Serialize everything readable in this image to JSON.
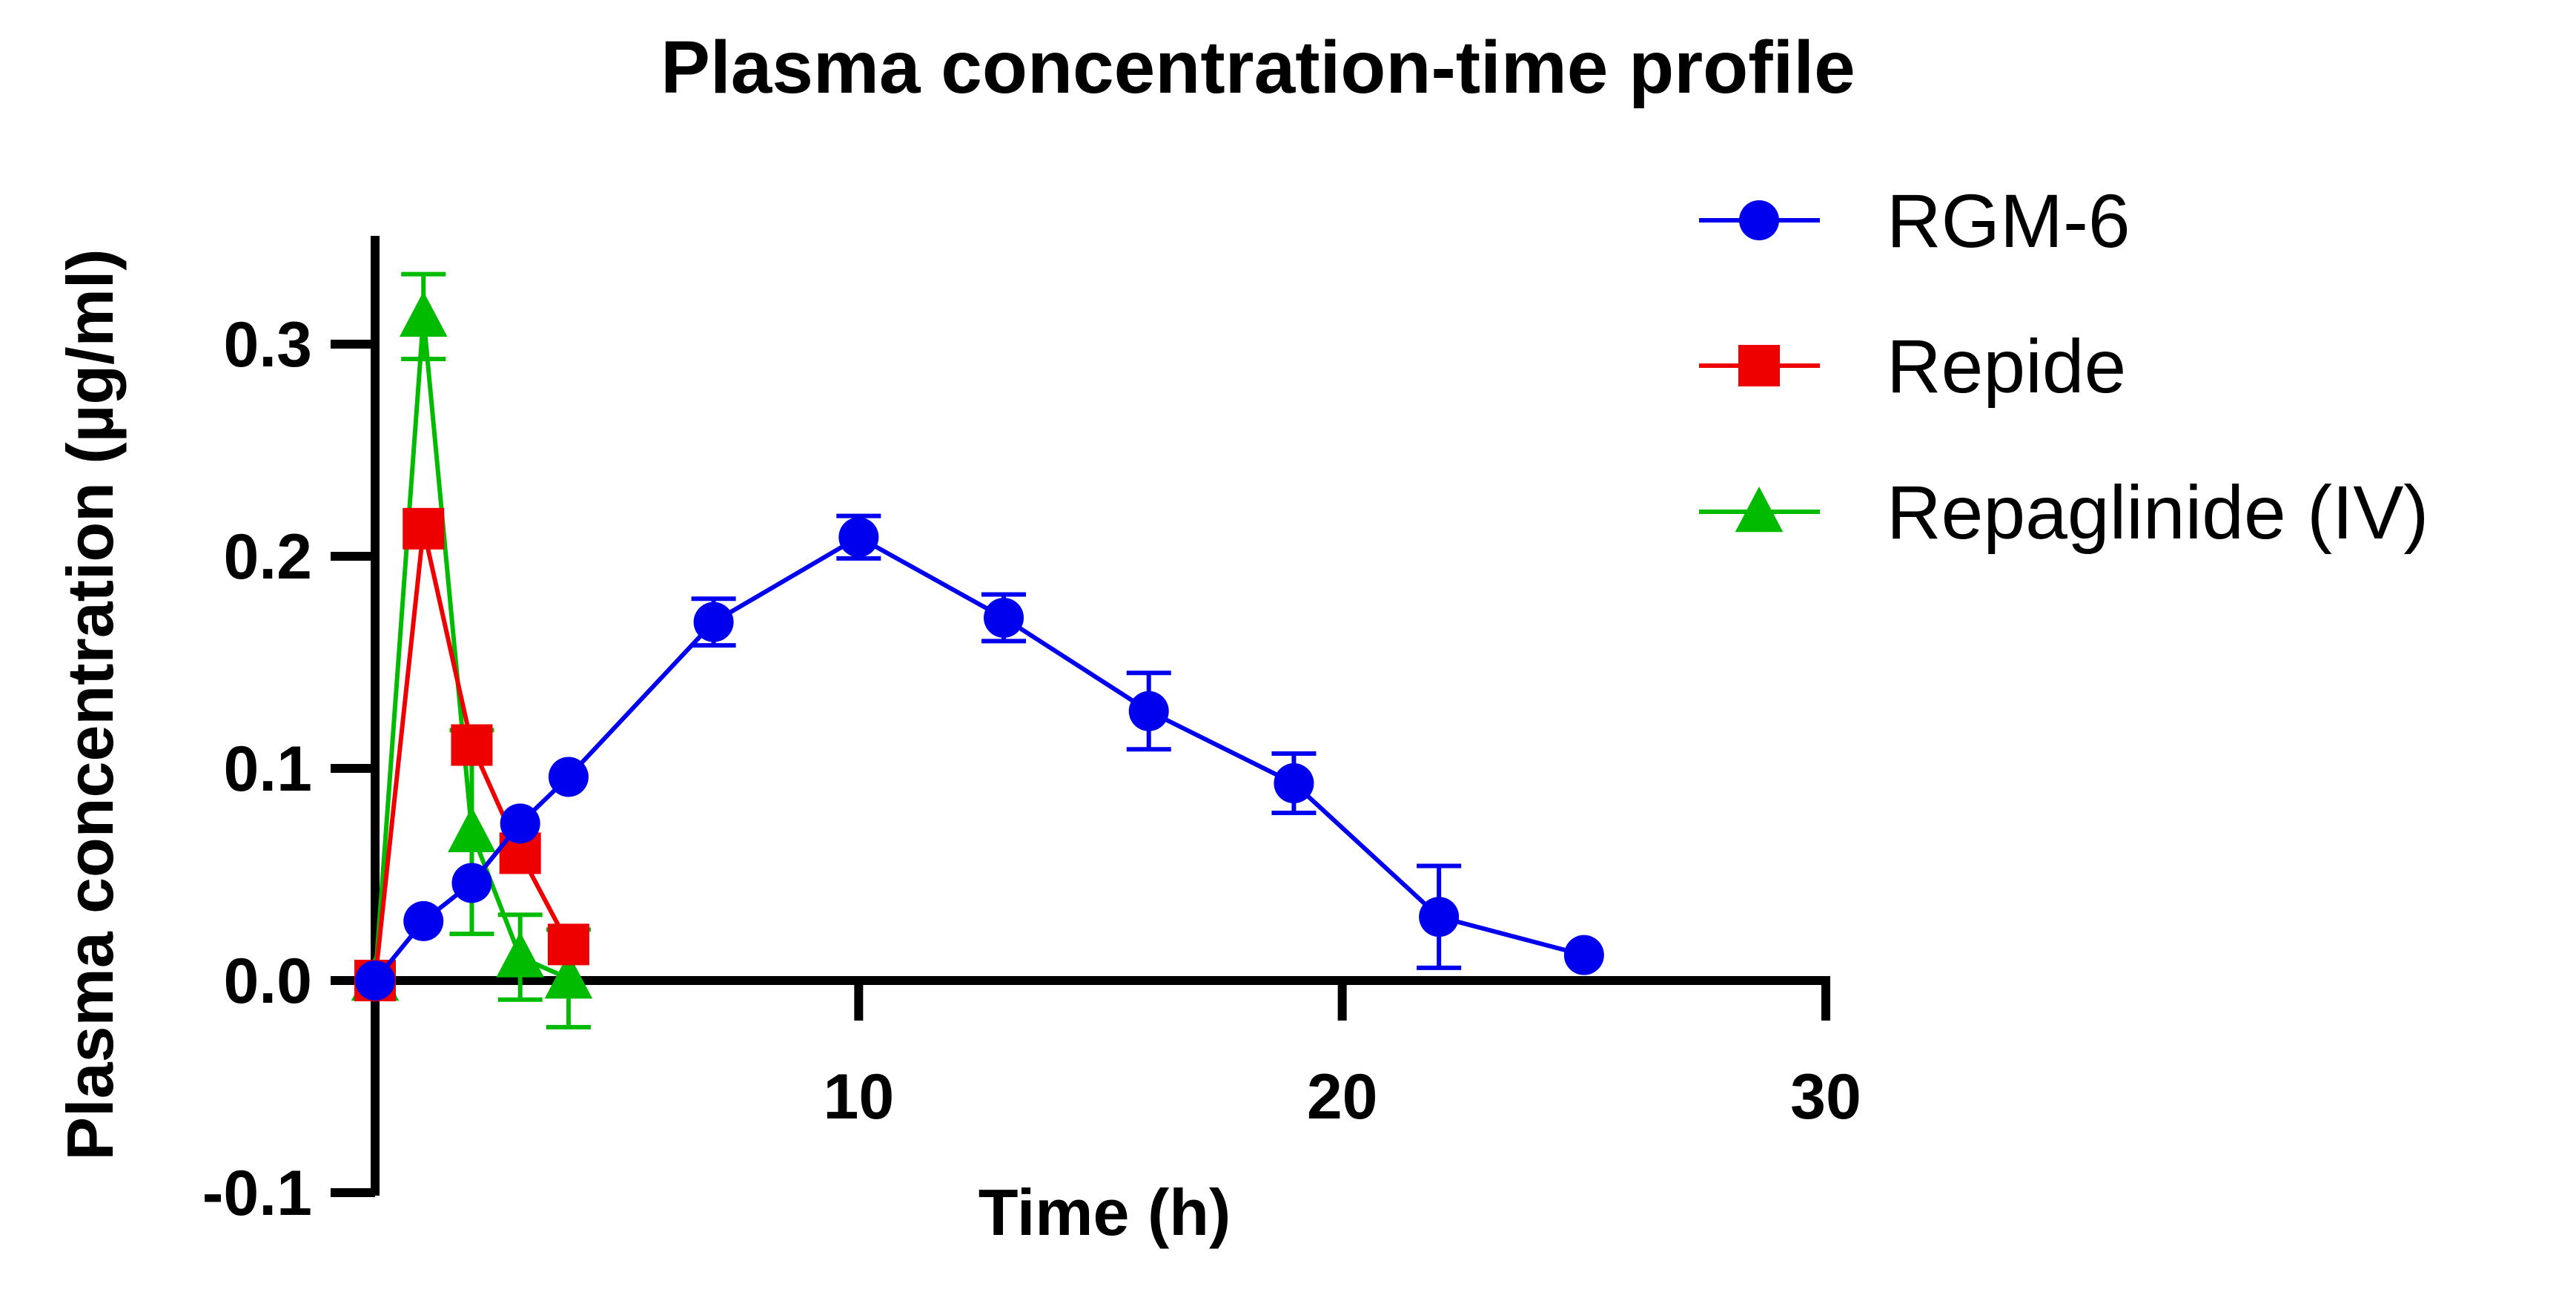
{
  "chart_data": {
    "type": "line",
    "title": "Plasma concentration-time profile",
    "xlabel": "Time (h)",
    "ylabel": "Plasma concentration (µg/ml)",
    "xlim": [
      0,
      30
    ],
    "ylim": [
      -0.1,
      0.35
    ],
    "x_ticks": [
      10,
      20,
      30
    ],
    "y_ticks": [
      -0.1,
      0.0,
      0.1,
      0.2,
      0.3
    ],
    "x_tick_labels": [
      "10",
      "20",
      "30"
    ],
    "y_tick_labels": [
      "-0.1",
      "0.0",
      "0.1",
      "0.2",
      "0.3"
    ],
    "grid": false,
    "legend_position": "top-right",
    "series": [
      {
        "name": "RGM-6",
        "marker": "circle",
        "color": "#0000ee",
        "x": [
          0,
          1,
          2,
          3,
          4,
          7,
          10,
          13,
          16,
          19,
          22,
          25
        ],
        "y": [
          0.0,
          0.028,
          0.046,
          0.074,
          0.096,
          0.169,
          0.209,
          0.171,
          0.127,
          0.093,
          0.03,
          0.012
        ],
        "err": [
          0,
          0,
          0,
          0,
          0,
          0.011,
          0.01,
          0.011,
          0.018,
          0.014,
          0.024,
          0
        ]
      },
      {
        "name": "Repide",
        "marker": "square",
        "color": "#ee0000",
        "x": [
          0,
          1,
          2,
          3,
          4
        ],
        "y": [
          0.0,
          0.213,
          0.111,
          0.06,
          0.017
        ],
        "err": [
          0,
          0,
          0,
          0,
          0
        ]
      },
      {
        "name": "Repaglinide (IV)",
        "marker": "triangle",
        "color": "#00bb00",
        "x": [
          0,
          1,
          2,
          3,
          4
        ],
        "y": [
          0.0,
          0.313,
          0.07,
          0.011,
          0.001
        ],
        "err": [
          0,
          0.02,
          0.048,
          0.02,
          0.023
        ]
      }
    ]
  }
}
